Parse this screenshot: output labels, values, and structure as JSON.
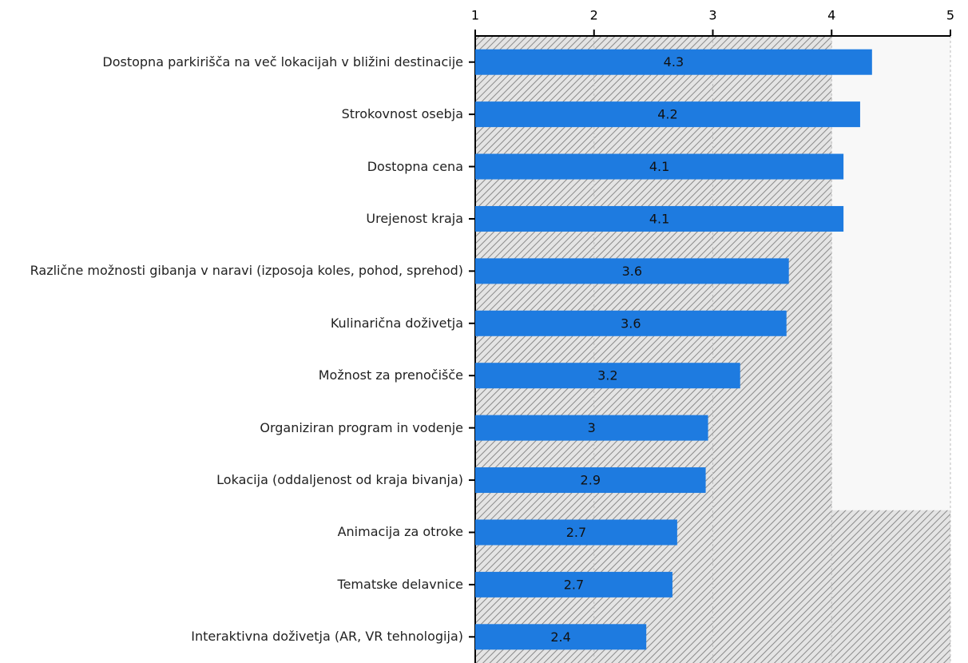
{
  "chart_data": {
    "type": "barh",
    "categories": [
      "Dostopna parkirišča na več lokacijah v bližini destinacije",
      "Strokovnost osebja",
      "Dostopna cena",
      "Urejenost kraja",
      "Različne možnosti gibanja v naravi (izposoja koles, pohod, sprehod)",
      "Kulinarična doživetja",
      "Možnost za prenočišče",
      "Organiziran program in vodenje",
      "Lokacija (oddaljenost od kraja bivanja)",
      "Animacija za otroke",
      "Tematske delavnice",
      "Interaktivna doživetja (AR, VR tehnologija)"
    ],
    "values": [
      4.34,
      4.24,
      4.1,
      4.1,
      3.64,
      3.62,
      3.23,
      2.96,
      2.94,
      2.7,
      2.66,
      2.44
    ],
    "value_labels": [
      "4.3",
      "4.2",
      "4.1",
      "4.1",
      "3.6",
      "3.6",
      "3.2",
      "3",
      "2.9",
      "2.7",
      "2.7",
      "2.4"
    ],
    "color": "#1e7be0",
    "xlim": [
      1,
      5
    ],
    "xticks": [
      1,
      2,
      3,
      4,
      5
    ]
  }
}
